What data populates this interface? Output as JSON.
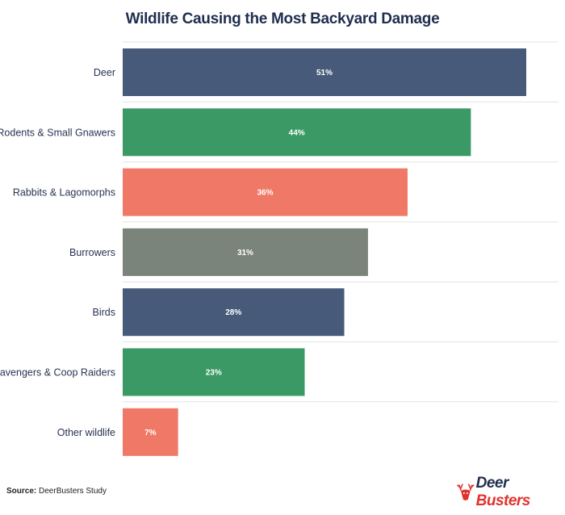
{
  "chart_data": {
    "type": "bar",
    "orientation": "horizontal",
    "title": "Wildlife Causing the Most Backyard Damage",
    "categories": [
      "Deer",
      "Rodents & Small Gnawers",
      "Rabbits & Lagomorphs",
      "Burrowers",
      "Birds",
      "Scavengers & Coop Raiders",
      "Other wildlife"
    ],
    "values": [
      51,
      44,
      36,
      31,
      28,
      23,
      7
    ],
    "value_labels": [
      "51%",
      "44%",
      "36%",
      "31%",
      "28%",
      "23%",
      "7%"
    ],
    "colors": [
      "#475a7a",
      "#3b9966",
      "#f07866",
      "#7b847a",
      "#475a7a",
      "#3b9966",
      "#f07866"
    ],
    "xlabel": "",
    "ylabel": "",
    "xlim": [
      0,
      51
    ],
    "grid": true
  },
  "footer": {
    "source_label": "Source:",
    "source_text": " DeerBusters Study"
  },
  "logo": {
    "word1": "Deer",
    "word2": "Busters"
  }
}
